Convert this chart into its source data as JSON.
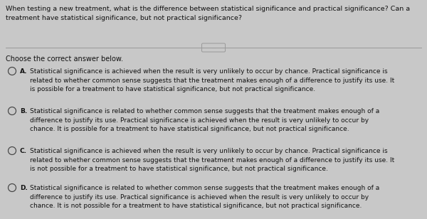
{
  "bg_color": "#c8c8c8",
  "question": "When testing a new treatment, what is the difference between statistical significance and practical significance? Can a\ntreatment have statistical significance, but not practical significance?",
  "instruction": "Choose the correct answer below.",
  "options": [
    {
      "label": "A.",
      "text": "Statistical significance is achieved when the result is very unlikely to occur by chance. Practical significance is\nrelated to whether common sense suggests that the treatment makes enough of a difference to justify its use. It\nis possible for a treatment to have statistical significance, but not practical significance."
    },
    {
      "label": "B.",
      "text": "Statistical significance is related to whether common sense suggests that the treatment makes enough of a\ndifference to justify its use. Practical significance is achieved when the result is very unlikely to occur by\nchance. It is possible for a treatment to have statistical significance, but not practical significance."
    },
    {
      "label": "C.",
      "text": "Statistical significance is achieved when the result is very unlikely to occur by chance. Practical significance is\nrelated to whether common sense suggests that the treatment makes enough of a difference to justify its use. It\nis not possible for a treatment to have statistical significance, but not practical significance."
    },
    {
      "label": "D.",
      "text": "Statistical significance is related to whether common sense suggests that the treatment makes enough of a\ndifference to justify its use. Practical significance is achieved when the result is very unlikely to occur by\nchance. It is not possible for a treatment to have statistical significance, but not practical significance."
    }
  ],
  "question_fontsize": 6.8,
  "option_fontsize": 6.5,
  "instruction_fontsize": 7.0,
  "text_color": "#111111",
  "separator_color": "#999999",
  "circle_color": "#444444",
  "label_color": "#111111"
}
